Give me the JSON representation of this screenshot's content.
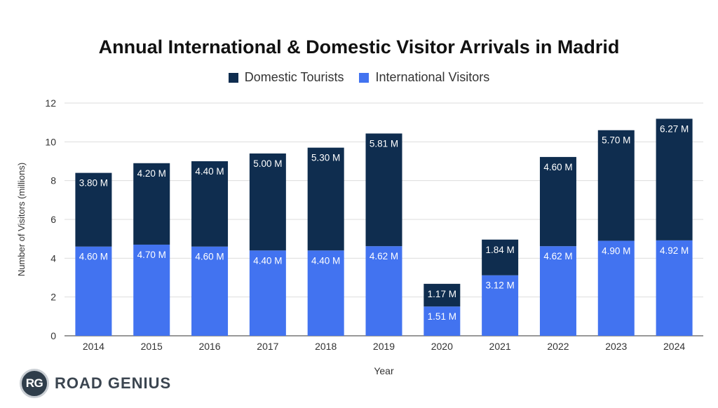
{
  "chart_data": {
    "type": "bar",
    "stacked": true,
    "title": "Annual International & Domestic Visitor Arrivals in Madrid",
    "xlabel": "Year",
    "ylabel": "Number of Visitors (millions)",
    "ylim": [
      0,
      12
    ],
    "yticks": [
      0,
      2,
      4,
      6,
      8,
      10,
      12
    ],
    "grid": true,
    "legend_position": "top",
    "categories": [
      "2014",
      "2015",
      "2016",
      "2017",
      "2018",
      "2019",
      "2020",
      "2021",
      "2022",
      "2023",
      "2024"
    ],
    "series": [
      {
        "name": "International Visitors",
        "color": "#4273f0",
        "values": [
          4.6,
          4.7,
          4.6,
          4.4,
          4.4,
          4.62,
          1.51,
          3.12,
          4.62,
          4.9,
          4.92
        ],
        "labels": [
          "4.60 M",
          "4.70 M",
          "4.60 M",
          "4.40 M",
          "4.40 M",
          "4.62 M",
          "1.51 M",
          "3.12 M",
          "4.62 M",
          "4.90 M",
          "4.92 M"
        ]
      },
      {
        "name": "Domestic Tourists",
        "color": "#0f2d4f",
        "values": [
          3.8,
          4.2,
          4.4,
          5.0,
          5.3,
          5.81,
          1.17,
          1.84,
          4.6,
          5.7,
          6.27
        ],
        "labels": [
          "3.80 M",
          "4.20 M",
          "4.40 M",
          "5.00 M",
          "5.30 M",
          "5.81 M",
          "1.17 M",
          "1.84 M",
          "4.60 M",
          "5.70 M",
          "6.27 M"
        ]
      }
    ],
    "legend_order": [
      "Domestic Tourists",
      "International Visitors"
    ]
  },
  "logo": {
    "badge": "RG",
    "text": "ROAD GENIUS"
  }
}
